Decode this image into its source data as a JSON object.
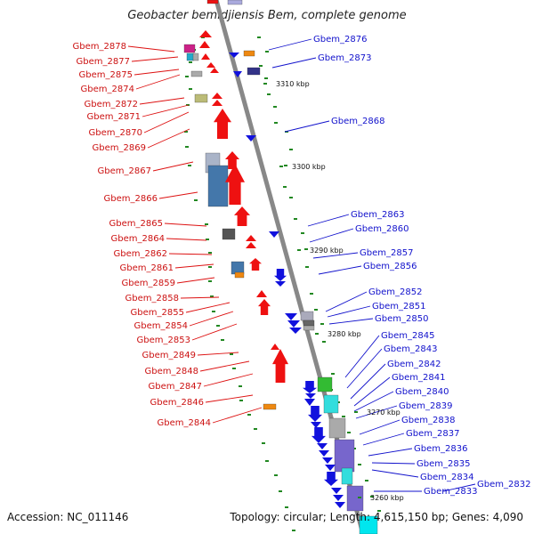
{
  "title": "Geobacter bemidjiensis Bem, complete genome",
  "footer": {
    "accession": "Accession: NC_011146",
    "summary": "Topology: circular; Length: 4,615,150 bp; Genes: 4,090"
  },
  "colors": {
    "forward": "#ee1111",
    "reverse": "#1111dd",
    "backbone": "#888888",
    "tick": "#228822"
  },
  "kbp_marks": [
    "3310 kbp",
    "3300 kbp",
    "3290 kbp",
    "3280 kbp",
    "3270 kbp",
    "3260 kbp"
  ],
  "forward_genes": [
    "Gbem_2878",
    "Gbem_2877",
    "Gbem_2875",
    "Gbem_2874",
    "Gbem_2872",
    "Gbem_2871",
    "Gbem_2870",
    "Gbem_2869",
    "Gbem_2867",
    "Gbem_2866",
    "Gbem_2865",
    "Gbem_2864",
    "Gbem_2862",
    "Gbem_2861",
    "Gbem_2859",
    "Gbem_2858",
    "Gbem_2855",
    "Gbem_2854",
    "Gbem_2853",
    "Gbem_2849",
    "Gbem_2848",
    "Gbem_2847",
    "Gbem_2846",
    "Gbem_2844"
  ],
  "reverse_genes": [
    "Gbem_2876",
    "Gbem_2873",
    "Gbem_2868",
    "Gbem_2863",
    "Gbem_2860",
    "Gbem_2857",
    "Gbem_2856",
    "Gbem_2852",
    "Gbem_2851",
    "Gbem_2850",
    "Gbem_2845",
    "Gbem_2843",
    "Gbem_2842",
    "Gbem_2841",
    "Gbem_2840",
    "Gbem_2839",
    "Gbem_2838",
    "Gbem_2837",
    "Gbem_2836",
    "Gbem_2835",
    "Gbem_2834",
    "Gbem_2833",
    "Gbem_2832"
  ]
}
